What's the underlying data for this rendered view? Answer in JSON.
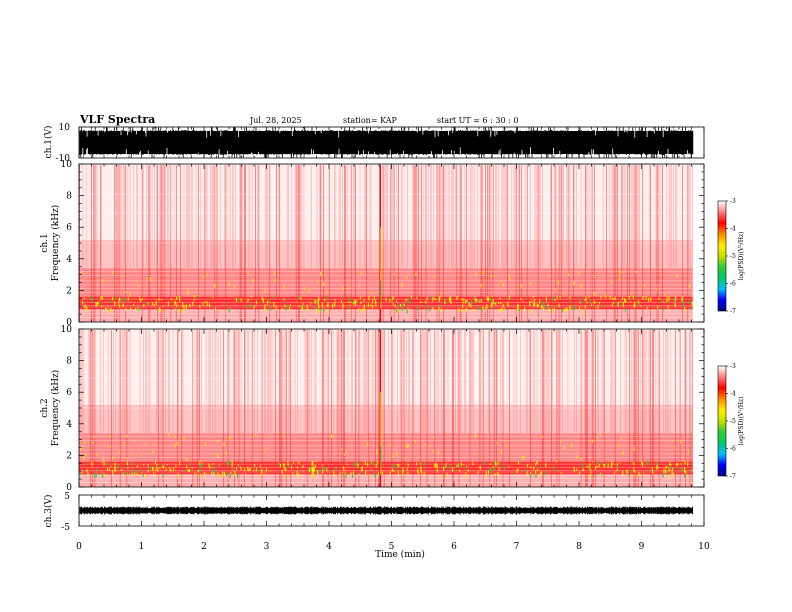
{
  "header": {
    "title": "VLF Spectra",
    "date": "Jul. 28, 2025",
    "station": "station= KAP",
    "start": "start  UT =   6  : 30 : 0"
  },
  "colors": {
    "low": "#ff9999",
    "mid": "#ff1a1a",
    "high": "#ffee00",
    "peak": "#33cc33",
    "colorbar": [
      "#000080",
      "#0000ff",
      "#00c0ff",
      "#00cc66",
      "#33cc33",
      "#ccdd00",
      "#ffee00",
      "#ff8800",
      "#ff0000",
      "#ff8080",
      "#ffffff"
    ]
  },
  "chart_data": [
    {
      "type": "line",
      "name": "ch1-waveform",
      "ylabel": "ch.1(V)",
      "ylim": [
        -10,
        10
      ],
      "yticks": [
        "10",
        "-10"
      ],
      "xlim": [
        0,
        10
      ],
      "approx_amplitude": 10
    },
    {
      "type": "heatmap",
      "name": "ch1-spectrogram",
      "ylabel": "ch.1\nFrequency (kHz)",
      "ylim": [
        0,
        10
      ],
      "yticks": [
        "0",
        "2",
        "4",
        "6",
        "8",
        "10"
      ],
      "xlim": [
        0,
        10
      ],
      "data_end_min": 9.82,
      "strong_band_khz": [
        0.8,
        1.6
      ],
      "medium_band_khz": [
        1.6,
        3.4
      ],
      "weak_band_khz": [
        3.4,
        5.2
      ],
      "impulse_min": 4.82,
      "colorbar": {
        "label": "log(PSD)(V²/Hz)",
        "range": [
          -7,
          -3
        ],
        "ticks": [
          "-3",
          "-4",
          "-5",
          "-6",
          "-7"
        ]
      }
    },
    {
      "type": "heatmap",
      "name": "ch2-spectrogram",
      "ylabel": "ch.2\nFrequency (kHz)",
      "ylim": [
        0,
        10
      ],
      "yticks": [
        "0",
        "2",
        "4",
        "6",
        "8",
        "10"
      ],
      "xlim": [
        0,
        10
      ],
      "data_end_min": 9.82,
      "strong_band_khz": [
        0.8,
        1.6
      ],
      "medium_band_khz": [
        1.6,
        3.4
      ],
      "weak_band_khz": [
        3.4,
        5.2
      ],
      "impulse_min": 4.82,
      "colorbar": {
        "label": "log(PSD)(V²/Hz)",
        "range": [
          -7,
          -3
        ],
        "ticks": [
          "-3",
          "-4",
          "-5",
          "-6",
          "-7"
        ]
      }
    },
    {
      "type": "line",
      "name": "ch3-waveform",
      "ylabel": "ch.3(V)",
      "ylim": [
        -5,
        5
      ],
      "yticks": [
        "5",
        "-5"
      ],
      "xlim": [
        0,
        10
      ],
      "approx_amplitude": 1
    }
  ],
  "xaxis": {
    "label": "Time (min)",
    "ticks": [
      "0",
      "1",
      "2",
      "3",
      "4",
      "5",
      "6",
      "7",
      "8",
      "9",
      "10"
    ]
  }
}
